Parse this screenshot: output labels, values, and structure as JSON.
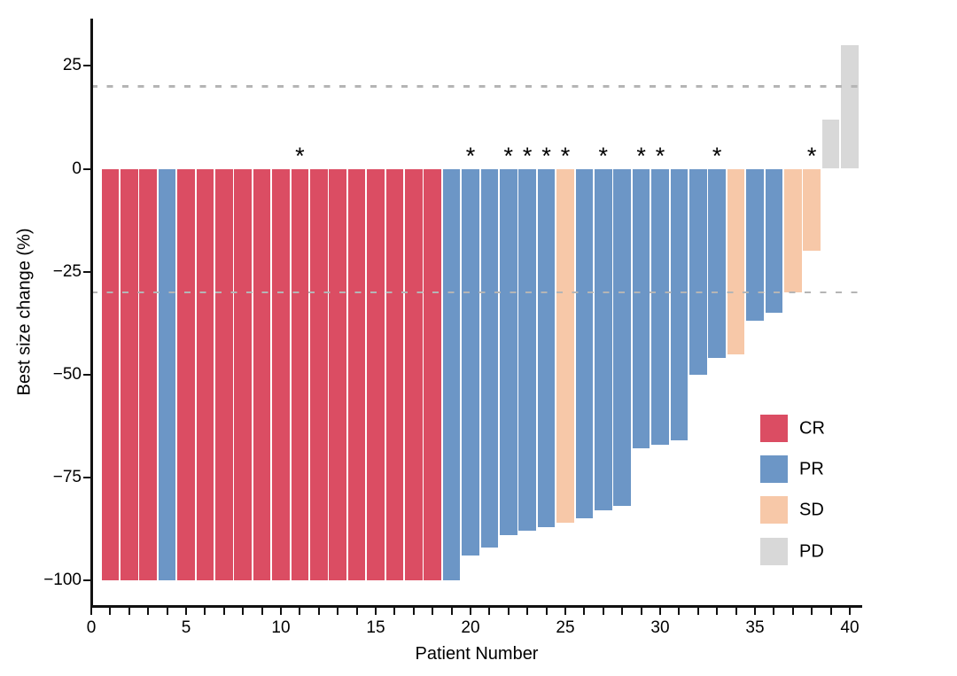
{
  "chart_data": {
    "type": "bar",
    "title": "",
    "xlabel": "Patient Number",
    "ylabel": "Best size change (%)",
    "xlim": [
      0,
      40.65
    ],
    "ylim": [
      -107,
      38
    ],
    "x_tick_step": 1,
    "x_tick_labels": [
      "0",
      "5",
      "10",
      "15",
      "20",
      "25",
      "30",
      "35",
      "40"
    ],
    "x_labeled_ticks": [
      0,
      5,
      10,
      15,
      20,
      25,
      30,
      35,
      40
    ],
    "y_ticks": [
      {
        "label": "25",
        "value": 25
      },
      {
        "label": "0",
        "value": 0
      },
      {
        "label": "−25",
        "value": -25
      },
      {
        "label": "−50",
        "value": -50
      },
      {
        "label": "−75",
        "value": -75
      },
      {
        "label": "−100",
        "value": -100
      }
    ],
    "reference_lines": {
      "values": [
        20,
        -30
      ],
      "style": "dashed",
      "color": "#b5b5b5"
    },
    "grid": "off",
    "legend_position": "inside-right",
    "asterisk_symbol": "*",
    "series_legend": [
      "CR",
      "PR",
      "SD",
      "PD"
    ],
    "patients": [
      {
        "n": 1,
        "value": -100,
        "response": "CR",
        "asterisk": false
      },
      {
        "n": 2,
        "value": -100,
        "response": "CR",
        "asterisk": false
      },
      {
        "n": 3,
        "value": -100,
        "response": "CR",
        "asterisk": false
      },
      {
        "n": 4,
        "value": -100,
        "response": "PR",
        "asterisk": false
      },
      {
        "n": 5,
        "value": -100,
        "response": "CR",
        "asterisk": false
      },
      {
        "n": 6,
        "value": -100,
        "response": "CR",
        "asterisk": false
      },
      {
        "n": 7,
        "value": -100,
        "response": "CR",
        "asterisk": false
      },
      {
        "n": 8,
        "value": -100,
        "response": "CR",
        "asterisk": false
      },
      {
        "n": 9,
        "value": -100,
        "response": "CR",
        "asterisk": false
      },
      {
        "n": 10,
        "value": -100,
        "response": "CR",
        "asterisk": false
      },
      {
        "n": 11,
        "value": -100,
        "response": "CR",
        "asterisk": true
      },
      {
        "n": 12,
        "value": -100,
        "response": "CR",
        "asterisk": false
      },
      {
        "n": 13,
        "value": -100,
        "response": "CR",
        "asterisk": false
      },
      {
        "n": 14,
        "value": -100,
        "response": "CR",
        "asterisk": false
      },
      {
        "n": 15,
        "value": -100,
        "response": "CR",
        "asterisk": false
      },
      {
        "n": 16,
        "value": -100,
        "response": "CR",
        "asterisk": false
      },
      {
        "n": 17,
        "value": -100,
        "response": "CR",
        "asterisk": false
      },
      {
        "n": 18,
        "value": -100,
        "response": "CR",
        "asterisk": false
      },
      {
        "n": 19,
        "value": -100,
        "response": "PR",
        "asterisk": false
      },
      {
        "n": 20,
        "value": -94,
        "response": "PR",
        "asterisk": true
      },
      {
        "n": 21,
        "value": -92,
        "response": "PR",
        "asterisk": false
      },
      {
        "n": 22,
        "value": -89,
        "response": "PR",
        "asterisk": true
      },
      {
        "n": 23,
        "value": -88,
        "response": "PR",
        "asterisk": true
      },
      {
        "n": 24,
        "value": -87,
        "response": "PR",
        "asterisk": true
      },
      {
        "n": 25,
        "value": -86,
        "response": "SD",
        "asterisk": true
      },
      {
        "n": 26,
        "value": -85,
        "response": "PR",
        "asterisk": false
      },
      {
        "n": 27,
        "value": -83,
        "response": "PR",
        "asterisk": true
      },
      {
        "n": 28,
        "value": -82,
        "response": "PR",
        "asterisk": false
      },
      {
        "n": 29,
        "value": -68,
        "response": "PR",
        "asterisk": true
      },
      {
        "n": 30,
        "value": -67,
        "response": "PR",
        "asterisk": true
      },
      {
        "n": 31,
        "value": -66,
        "response": "PR",
        "asterisk": false
      },
      {
        "n": 32,
        "value": -50,
        "response": "PR",
        "asterisk": false
      },
      {
        "n": 33,
        "value": -46,
        "response": "PR",
        "asterisk": true
      },
      {
        "n": 34,
        "value": -45,
        "response": "SD",
        "asterisk": false
      },
      {
        "n": 35,
        "value": -37,
        "response": "PR",
        "asterisk": false
      },
      {
        "n": 36,
        "value": -35,
        "response": "PR",
        "asterisk": false
      },
      {
        "n": 37,
        "value": -30,
        "response": "SD",
        "asterisk": false
      },
      {
        "n": 38,
        "value": -20,
        "response": "SD",
        "asterisk": true
      },
      {
        "n": 39,
        "value": 12,
        "response": "PD",
        "asterisk": false
      },
      {
        "n": 40,
        "value": 30,
        "response": "PD",
        "asterisk": false
      }
    ]
  },
  "legend": {
    "items": [
      {
        "label": "CR",
        "color": "#db4d63"
      },
      {
        "label": "PR",
        "color": "#6c96c6"
      },
      {
        "label": "SD",
        "color": "#f7c8a8"
      },
      {
        "label": "PD",
        "color": "#d8d8d8"
      }
    ]
  },
  "colors": {
    "axis": "#111111",
    "reference_line": "#b5b5b5",
    "background": "#ffffff"
  }
}
